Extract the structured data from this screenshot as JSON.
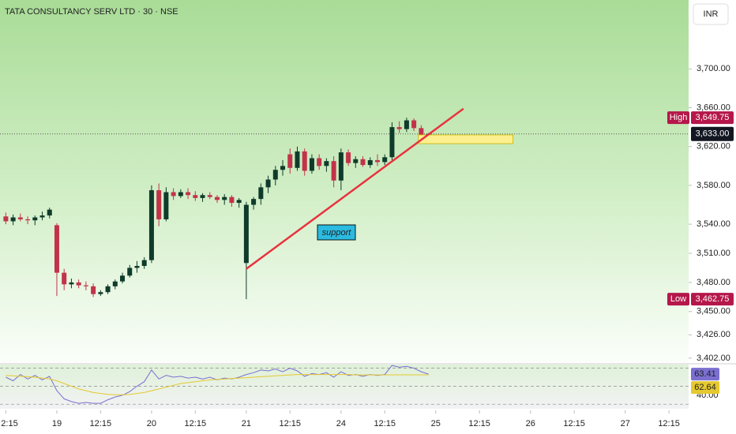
{
  "chart_data": {
    "type": "candlestick",
    "title": "TATA CONSULTANCY SERV LTD · 30 · NSE",
    "currency": "INR",
    "annotation": "support",
    "colors": {
      "up": "#0f3b2b",
      "down": "#c2334a"
    },
    "x": [
      0,
      1,
      2,
      3,
      4,
      5,
      6,
      7,
      8,
      9,
      10,
      11,
      12,
      13,
      14,
      15,
      16,
      17,
      18,
      19,
      20,
      21,
      22,
      23,
      24,
      25,
      26,
      27,
      28,
      29,
      30,
      31,
      32,
      33,
      34,
      35,
      36,
      37,
      38,
      39,
      40,
      41,
      42,
      43,
      44,
      45,
      46,
      47,
      48,
      49,
      50,
      51,
      52,
      53,
      54,
      55,
      56,
      57,
      58
    ],
    "open": [
      3548,
      3543,
      3547,
      3545,
      3544,
      3547,
      3549,
      3539,
      3490,
      3478,
      3480,
      3477,
      3476,
      3468,
      3470,
      3476,
      3481,
      3487,
      3495,
      3497,
      3503,
      3575,
      3545,
      3573,
      3569,
      3573,
      3570,
      3567,
      3570,
      3568,
      3565,
      3568,
      3562,
      3500,
      3560,
      3566,
      3578,
      3586,
      3596,
      3612,
      3598,
      3615,
      3595,
      3608,
      3600,
      3605,
      3585,
      3614,
      3603,
      3607,
      3601,
      3606,
      3604,
      3609,
      3640,
      3638,
      3647,
      3639,
      3631
    ],
    "high": [
      3552,
      3550,
      3551,
      3548,
      3549,
      3553,
      3557,
      3541,
      3494,
      3484,
      3483,
      3481,
      3479,
      3472,
      3478,
      3483,
      3490,
      3498,
      3502,
      3506,
      3580,
      3582,
      3578,
      3577,
      3576,
      3577,
      3574,
      3572,
      3573,
      3570,
      3571,
      3570,
      3567,
      3563,
      3568,
      3582,
      3590,
      3600,
      3606,
      3618,
      3620,
      3618,
      3612,
      3612,
      3608,
      3610,
      3618,
      3617,
      3610,
      3610,
      3609,
      3612,
      3612,
      3645,
      3646,
      3649.75,
      3649,
      3642,
      3634
    ],
    "low": [
      3540,
      3539,
      3543,
      3540,
      3539,
      3544,
      3546,
      3466,
      3472,
      3474,
      3474,
      3472,
      3465,
      3466,
      3468,
      3473,
      3479,
      3485,
      3490,
      3494,
      3500,
      3538,
      3543,
      3565,
      3567,
      3566,
      3564,
      3563,
      3566,
      3562,
      3560,
      3558,
      3557,
      3462.75,
      3555,
      3560,
      3572,
      3580,
      3590,
      3592,
      3595,
      3590,
      3592,
      3596,
      3594,
      3578,
      3575,
      3600,
      3598,
      3599,
      3598,
      3600,
      3601,
      3606,
      3634,
      3635,
      3636,
      3628,
      3629
    ],
    "close": [
      3543,
      3547,
      3545,
      3544,
      3547,
      3549,
      3555,
      3490,
      3478,
      3480,
      3477,
      3476,
      3468,
      3470,
      3476,
      3481,
      3487,
      3495,
      3497,
      3503,
      3575,
      3545,
      3573,
      3569,
      3573,
      3570,
      3567,
      3570,
      3568,
      3565,
      3568,
      3562,
      3565,
      3560,
      3566,
      3578,
      3586,
      3596,
      3600,
      3598,
      3615,
      3595,
      3608,
      3600,
      3605,
      3585,
      3614,
      3603,
      3607,
      3601,
      3606,
      3604,
      3609,
      3640,
      3638,
      3647,
      3639,
      3631,
      3633
    ],
    "xlim": [
      -0.8,
      93.7
    ],
    "xticks": [
      {
        "value": 0,
        "label": "2:15"
      },
      {
        "value": 7,
        "label": "19"
      },
      {
        "value": 13,
        "label": "12:15"
      },
      {
        "value": 20,
        "label": "20"
      },
      {
        "value": 26,
        "label": "12:15"
      },
      {
        "value": 33,
        "label": "21"
      },
      {
        "value": 39,
        "label": "12:15"
      },
      {
        "value": 46,
        "label": "24"
      },
      {
        "value": 52,
        "label": "12:15"
      },
      {
        "value": 59,
        "label": "25"
      },
      {
        "value": 65,
        "label": "12:15"
      },
      {
        "value": 72,
        "label": "26"
      },
      {
        "value": 78,
        "label": "12:15"
      },
      {
        "value": 85,
        "label": "27"
      },
      {
        "value": 91,
        "label": "12:15"
      }
    ],
    "ylim": [
      3397,
      3771
    ],
    "yticks": [
      {
        "value": 3700,
        "label": "3,700.00"
      },
      {
        "value": 3660,
        "label": "3,660.00"
      },
      {
        "value": 3620,
        "label": "3,620.00"
      },
      {
        "value": 3580,
        "label": "3,580.00"
      },
      {
        "value": 3540,
        "label": "3,540.00"
      },
      {
        "value": 3510,
        "label": "3,510.00"
      },
      {
        "value": 3480,
        "label": "3,480.00"
      },
      {
        "value": 3450,
        "label": "3,450.00"
      },
      {
        "value": 3426,
        "label": "3,426.00"
      },
      {
        "value": 3402,
        "label": "3,402.00"
      }
    ],
    "grid": false,
    "high_marker": {
      "label": "High",
      "value": 3649.75,
      "value_label": "3,649.75",
      "color": "#b5174b"
    },
    "low_marker": {
      "label": "Low",
      "value": 3462.75,
      "value_label": "3,462.75",
      "color": "#b5174b"
    },
    "last_price": {
      "value": 3633,
      "value_label": "3,633.00",
      "color": "#131722"
    },
    "trendline": {
      "x": [
        33,
        62.8
      ],
      "y": [
        3494,
        3659
      ],
      "color": "#e8333f"
    },
    "zone": {
      "x": [
        56.6,
        69.6
      ],
      "y": [
        3623,
        3632
      ],
      "color": "#fbef8f"
    },
    "rsi": {
      "ylim": [
        25,
        74
      ],
      "yticks": [
        {
          "value": 40,
          "label": "40.00"
        }
      ],
      "bands": [
        70,
        50,
        30
      ],
      "series": [
        {
          "color": "#7b6fd0",
          "values": [
            60,
            56,
            63,
            58,
            62,
            57,
            61,
            45,
            36,
            33,
            31,
            32,
            31,
            31,
            35,
            38,
            40,
            44,
            50,
            55,
            68,
            58,
            62,
            60,
            61,
            59,
            60,
            58,
            60,
            57,
            59,
            58,
            60,
            63,
            65,
            68,
            67,
            69,
            66,
            70,
            67,
            61,
            64,
            63,
            65,
            60,
            66,
            62,
            63,
            61,
            63,
            62,
            63,
            73,
            71,
            72,
            70,
            66,
            63.41
          ]
        },
        {
          "color": "#e5c930",
          "values": [
            62,
            61.5,
            61,
            60.5,
            60,
            59,
            58,
            56,
            53,
            50,
            47,
            45,
            43,
            42,
            41,
            40.5,
            40.5,
            41,
            42,
            43,
            45,
            47,
            49,
            51,
            53,
            54,
            55,
            56,
            57,
            57.5,
            58,
            58.5,
            59,
            59.5,
            60,
            60.5,
            61,
            61.5,
            62,
            62.5,
            63,
            63,
            63,
            63,
            63,
            63,
            63,
            63,
            62.5,
            62.5,
            62.5,
            62.5,
            62.5,
            62.6,
            62.6,
            62.6,
            62.6,
            62.6,
            62.64
          ]
        }
      ]
    }
  }
}
